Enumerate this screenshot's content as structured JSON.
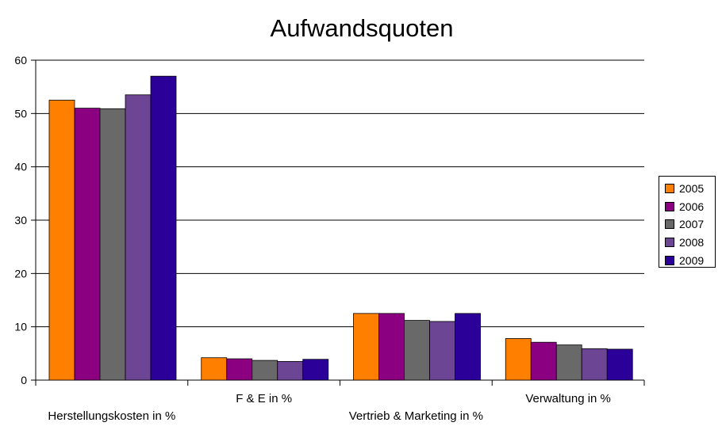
{
  "chart_data": {
    "type": "bar",
    "title": "Aufwandsquoten",
    "categories": [
      "Herstellungskosten in %",
      "F & E in %",
      "Vertrieb & Marketing in %",
      "Verwaltung  in %"
    ],
    "series": [
      {
        "name": "2005",
        "color": "#ff7f00",
        "values": [
          52.5,
          4.2,
          12.5,
          7.8
        ]
      },
      {
        "name": "2006",
        "color": "#8b0080",
        "values": [
          51.0,
          4.0,
          12.5,
          7.1
        ]
      },
      {
        "name": "2007",
        "color": "#696969",
        "values": [
          50.9,
          3.7,
          11.2,
          6.6
        ]
      },
      {
        "name": "2008",
        "color": "#6c4595",
        "values": [
          53.5,
          3.5,
          11.0,
          5.9
        ]
      },
      {
        "name": "2009",
        "color": "#2a0099",
        "values": [
          57.0,
          3.9,
          12.5,
          5.8
        ]
      }
    ],
    "ylim": [
      0,
      60
    ],
    "yticks": [
      0,
      10,
      20,
      30,
      40,
      50,
      60
    ],
    "grid": true,
    "legend_position": "right"
  }
}
